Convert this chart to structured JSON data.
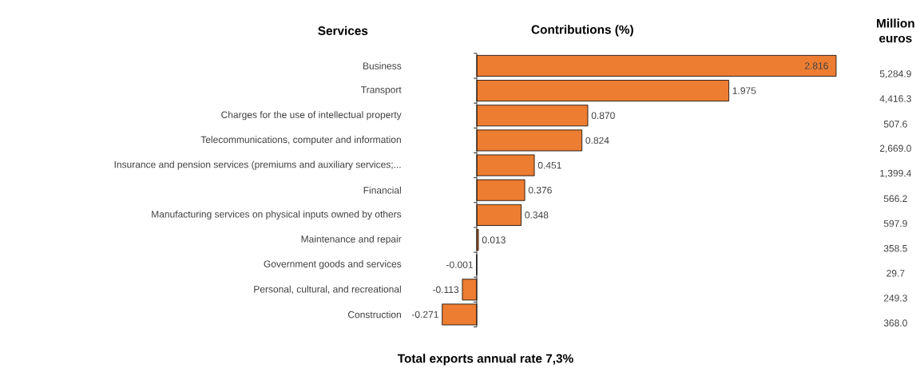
{
  "chart_data": {
    "type": "bar",
    "orientation": "horizontal",
    "title": "Total exports annual rate 7,3%",
    "ylabel": "Services",
    "xlabel": "Contributions (%)",
    "categories": [
      "Business",
      "Transport",
      "Charges for the use of intellectual property",
      "Telecommunications, computer and information",
      "Insurance and pension services (premiums and auxiliary services;...",
      "Financial",
      "Manufacturing services on physical inputs owned by others",
      "Maintenance and repair",
      "Government goods and services",
      "Personal, cultural, and recreational",
      "Construction"
    ],
    "values": [
      2.816,
      1.975,
      0.87,
      0.824,
      0.451,
      0.376,
      0.348,
      0.013,
      -0.001,
      -0.113,
      -0.271
    ],
    "value_labels": [
      "2.816",
      "1.975",
      "0.870",
      "0.824",
      "0.451",
      "0.376",
      "0.348",
      "0.013",
      "-0.001",
      "-0.113",
      "-0.271"
    ],
    "color": "#ed7d31",
    "tick_labels": "y",
    "annotations": [
      "Million euros",
      "5,284.9",
      "4,416.3",
      "507.6",
      "2,669.0",
      "1,399.4",
      "566.2",
      "597.9",
      "358.5",
      "29.7",
      "249.3",
      "368.0"
    ]
  }
}
